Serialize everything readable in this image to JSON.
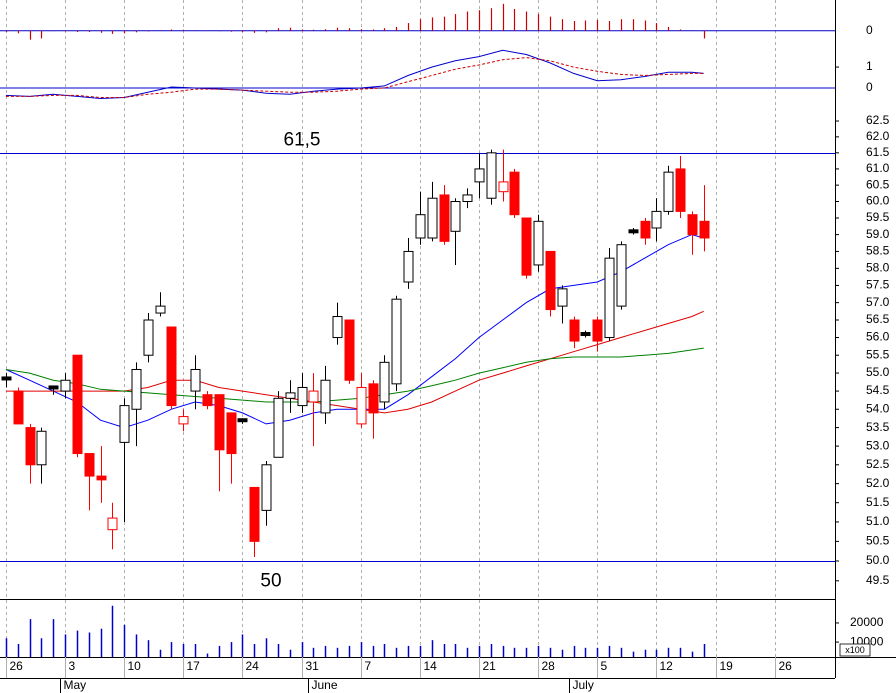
{
  "chart_data": {
    "type": "candlestick",
    "log": true,
    "xlim": [
      -0.5,
      70.1
    ],
    "ylim": [
      49.07,
      63.17
    ],
    "yticks": [
      62.5,
      {
        "value": 62,
        "label": "62.0"
      },
      61.5,
      {
        "value": 61,
        "label": "61.0"
      },
      60.5,
      {
        "value": 60,
        "label": "60.0"
      },
      59.5,
      {
        "value": 59,
        "label": "59.0"
      },
      58.5,
      {
        "value": 58,
        "label": "58.0"
      },
      57.5,
      {
        "value": 57,
        "label": "57.0"
      },
      56.5,
      {
        "value": 56,
        "label": "56.0"
      },
      55.5,
      {
        "value": 55,
        "label": "55.0"
      },
      54.5,
      {
        "value": 54,
        "label": "54.0"
      },
      53.5,
      {
        "value": 53,
        "label": "53.0"
      },
      52.5,
      {
        "value": 52,
        "label": "52.0"
      },
      51.5,
      {
        "value": 51,
        "label": "51.0"
      },
      50.5,
      {
        "value": 50,
        "label": "50.0"
      },
      49.5
    ],
    "xticks": [
      {
        "value": 0,
        "label": "26"
      },
      {
        "value": 5,
        "label": "3"
      },
      {
        "value": 10,
        "label": "10"
      },
      {
        "value": 15,
        "label": "17"
      },
      {
        "value": 20,
        "label": "24"
      },
      {
        "value": 25,
        "label": "31"
      },
      {
        "value": 30,
        "label": "7"
      },
      {
        "value": 35,
        "label": "14"
      },
      {
        "value": 40,
        "label": "21"
      },
      {
        "value": 45,
        "label": "28"
      },
      {
        "value": 50,
        "label": "5"
      },
      {
        "value": 55,
        "label": "12"
      },
      {
        "value": 60,
        "label": "19"
      },
      {
        "value": 65,
        "label": "26"
      }
    ],
    "months": [
      {
        "value": 5,
        "label": "May"
      },
      {
        "value": 26,
        "label": "June"
      },
      {
        "value": 48,
        "label": "July"
      }
    ],
    "up_color": "#ffffff",
    "down_color": "#ff0000",
    "flat_color": "#000000",
    "candles": {
      "open": [
        54.85,
        54.5,
        53.5,
        52.5,
        54.6,
        54.5,
        55.5,
        52.8,
        52.2,
        50.8,
        53.1,
        54.0,
        55.5,
        56.7,
        56.3,
        53.6,
        54.5,
        54.4,
        54.4,
        53.9,
        53.7,
        51.9,
        51.3,
        52.7,
        54.3,
        54.1,
        54.2,
        53.9,
        56.0,
        56.5,
        53.6,
        54.7,
        54.2,
        54.7,
        57.6,
        58.9,
        58.9,
        60.2,
        59.1,
        60.0,
        60.6,
        60.1,
        60.3,
        60.9,
        59.5,
        58.1,
        58.5,
        56.9,
        56.5,
        56.1,
        56.5,
        56.0,
        56.9,
        59.1,
        59.4,
        59.2,
        59.7,
        61.0,
        59.6,
        59.4
      ],
      "high": [
        55.0,
        54.6,
        53.6,
        53.5,
        54.65,
        55.0,
        55.5,
        52.8,
        53.0,
        51.5,
        54.3,
        55.3,
        56.7,
        57.3,
        56.3,
        54.0,
        55.5,
        54.5,
        54.4,
        53.9,
        53.75,
        51.9,
        52.6,
        54.5,
        54.8,
        55.0,
        55.0,
        55.2,
        57.0,
        56.5,
        55.0,
        54.8,
        55.5,
        57.2,
        58.9,
        60.3,
        60.6,
        60.5,
        60.1,
        60.4,
        61.5,
        61.6,
        61.6,
        61.0,
        59.5,
        59.6,
        58.5,
        57.5,
        56.6,
        56.2,
        56.6,
        58.6,
        58.8,
        59.2,
        59.5,
        60.1,
        61.1,
        61.4,
        59.7,
        60.5
      ],
      "low": [
        54.6,
        53.6,
        52.0,
        52.0,
        54.4,
        54.3,
        52.7,
        51.3,
        51.5,
        50.3,
        51.0,
        53.0,
        55.3,
        56.6,
        54.0,
        53.4,
        54.0,
        54.0,
        51.8,
        52.0,
        53.6,
        50.1,
        50.9,
        52.7,
        53.9,
        53.9,
        53.0,
        53.6,
        55.8,
        54.7,
        53.5,
        53.2,
        54.0,
        54.5,
        57.4,
        58.7,
        58.8,
        58.7,
        58.1,
        59.8,
        60.1,
        59.9,
        60.0,
        59.5,
        57.7,
        57.9,
        56.6,
        56.4,
        55.7,
        56.0,
        55.6,
        55.9,
        56.8,
        59.0,
        58.7,
        58.8,
        59.6,
        59.5,
        58.4,
        58.5
      ],
      "close": [
        54.85,
        53.6,
        52.5,
        53.4,
        54.6,
        54.8,
        52.8,
        52.2,
        52.1,
        51.1,
        54.1,
        55.1,
        56.5,
        56.9,
        54.1,
        53.8,
        55.1,
        54.1,
        52.9,
        52.8,
        53.7,
        50.5,
        52.5,
        54.3,
        54.45,
        54.6,
        54.5,
        54.8,
        56.6,
        54.8,
        54.6,
        53.9,
        55.3,
        57.1,
        58.5,
        59.6,
        60.1,
        58.8,
        60.0,
        60.2,
        61.0,
        61.5,
        60.6,
        59.6,
        57.8,
        59.4,
        56.8,
        57.4,
        55.9,
        56.1,
        55.9,
        58.3,
        58.7,
        59.1,
        58.9,
        59.7,
        60.9,
        59.7,
        59.0,
        58.9
      ]
    },
    "overlays": [
      {
        "color": "#0000ff",
        "x": [
          0,
          2,
          4,
          6,
          8,
          10,
          12,
          14,
          16,
          18,
          20,
          22,
          24,
          26,
          28,
          30,
          32,
          34,
          36,
          38,
          40,
          42,
          44,
          46,
          48,
          50,
          52,
          54,
          56,
          58,
          59
        ],
        "values": [
          55.1,
          54.8,
          54.5,
          54.2,
          53.7,
          53.5,
          53.7,
          54.0,
          54.2,
          54.1,
          53.9,
          53.6,
          53.7,
          53.9,
          54.0,
          54.0,
          54.0,
          54.4,
          54.9,
          55.4,
          56.0,
          56.5,
          57.0,
          57.4,
          57.5,
          57.6,
          57.9,
          58.3,
          58.7,
          59.0,
          58.9
        ]
      },
      {
        "color": "#e00000",
        "x": [
          0,
          2,
          4,
          6,
          8,
          10,
          12,
          14,
          16,
          18,
          20,
          22,
          24,
          26,
          28,
          30,
          32,
          34,
          36,
          38,
          40,
          42,
          44,
          46,
          48,
          50,
          52,
          54,
          56,
          58,
          59
        ],
        "values": [
          54.5,
          54.5,
          54.5,
          54.5,
          54.5,
          54.5,
          54.6,
          54.8,
          54.8,
          54.6,
          54.5,
          54.4,
          54.3,
          54.2,
          54.1,
          54.0,
          53.9,
          54.0,
          54.2,
          54.5,
          54.8,
          55.0,
          55.2,
          55.4,
          55.6,
          55.8,
          56.0,
          56.2,
          56.4,
          56.6,
          56.75
        ]
      },
      {
        "color": "#008000",
        "x": [
          0,
          2,
          4,
          6,
          8,
          10,
          12,
          14,
          16,
          18,
          20,
          22,
          24,
          26,
          28,
          30,
          32,
          34,
          36,
          38,
          40,
          42,
          44,
          46,
          48,
          50,
          52,
          54,
          56,
          58,
          59
        ],
        "values": [
          55.1,
          55.0,
          54.8,
          54.7,
          54.55,
          54.5,
          54.45,
          54.4,
          54.35,
          54.3,
          54.25,
          54.2,
          54.2,
          54.2,
          54.25,
          54.3,
          54.4,
          54.5,
          54.65,
          54.8,
          55.0,
          55.15,
          55.3,
          55.4,
          55.45,
          55.45,
          55.45,
          55.5,
          55.55,
          55.65,
          55.7
        ]
      }
    ],
    "hlines": [
      {
        "value": 61.5,
        "label": "61,5"
      },
      {
        "value": 50,
        "label": "50"
      }
    ],
    "hline_color": "#0000cc",
    "macd_hist": {
      "color": "#cc0000",
      "ylim": [
        -0.4,
        1.2
      ],
      "yticks": [
        0
      ],
      "values": [
        -0.05,
        -0.1,
        -0.35,
        -0.3,
        -0.02,
        -0.03,
        -0.05,
        -0.05,
        -0.08,
        -0.12,
        -0.1,
        -0.06,
        -0.03,
        0.02,
        0.05,
        0.04,
        0.02,
        0.01,
        -0.02,
        -0.04,
        -0.05,
        -0.08,
        -0.06,
        0.1,
        0.12,
        0.05,
        0.04,
        0.06,
        0.12,
        0.1,
        0.06,
        0.05,
        0.1,
        0.15,
        0.3,
        0.45,
        0.52,
        0.55,
        0.65,
        0.75,
        0.8,
        0.88,
        1.05,
        0.85,
        0.75,
        0.65,
        0.55,
        0.45,
        0.38,
        0.4,
        0.42,
        0.38,
        0.45,
        0.45,
        0.4,
        0.3,
        0.15,
        0.05,
        0.02,
        -0.3
      ]
    },
    "macd": {
      "ylim": [
        -0.57,
        2.29
      ],
      "yticks": [
        1,
        0
      ],
      "lines": [
        {
          "color": "#0000cc",
          "dashed": false,
          "x": [
            0,
            2,
            4,
            6,
            8,
            10,
            12,
            14,
            16,
            18,
            20,
            22,
            24,
            26,
            28,
            30,
            32,
            34,
            36,
            38,
            40,
            42,
            44,
            46,
            48,
            50,
            52,
            54,
            56,
            58,
            59
          ],
          "values": [
            -0.35,
            -0.4,
            -0.3,
            -0.4,
            -0.5,
            -0.45,
            -0.2,
            0.05,
            0.0,
            -0.05,
            -0.1,
            -0.25,
            -0.3,
            -0.15,
            -0.05,
            0.0,
            0.1,
            0.6,
            1.0,
            1.3,
            1.5,
            1.8,
            1.6,
            1.2,
            0.7,
            0.35,
            0.4,
            0.55,
            0.75,
            0.75,
            0.7
          ]
        },
        {
          "color": "#cc0000",
          "dashed": true,
          "x": [
            0,
            2,
            4,
            6,
            8,
            10,
            12,
            14,
            16,
            18,
            20,
            22,
            24,
            26,
            28,
            30,
            32,
            34,
            36,
            38,
            40,
            42,
            44,
            46,
            48,
            50,
            52,
            54,
            56,
            58,
            59
          ],
          "values": [
            -0.4,
            -0.4,
            -0.35,
            -0.35,
            -0.45,
            -0.45,
            -0.3,
            -0.2,
            -0.05,
            -0.05,
            -0.1,
            -0.15,
            -0.2,
            -0.2,
            -0.15,
            -0.05,
            0.0,
            0.3,
            0.6,
            0.9,
            1.1,
            1.35,
            1.45,
            1.3,
            1.0,
            0.8,
            0.65,
            0.6,
            0.65,
            0.7,
            0.7
          ]
        }
      ]
    },
    "volume": {
      "color": "#0000cc",
      "ylim": [
        2200,
        32000
      ],
      "yticks": [
        20000,
        10000
      ],
      "unit_label": "x100",
      "values": [
        12000,
        9000,
        22000,
        12000,
        22000,
        14000,
        16000,
        15000,
        17000,
        29000,
        19000,
        14000,
        11000,
        6000,
        10000,
        9000,
        9000,
        4000,
        8000,
        10000,
        14000,
        9000,
        12000,
        9000,
        6000,
        10000,
        7000,
        8000,
        7000,
        8000,
        10000,
        8000,
        9000,
        7000,
        8000,
        8000,
        11000,
        9000,
        9000,
        7000,
        8000,
        9000,
        8000,
        7000,
        7000,
        8000,
        7000,
        6000,
        8000,
        7000,
        7000,
        8000,
        7000,
        5000,
        6000,
        6000,
        7000,
        7000,
        5000,
        9000
      ]
    }
  }
}
